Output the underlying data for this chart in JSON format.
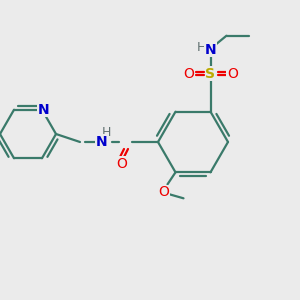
{
  "bg_color": "#ebebeb",
  "atom_colors": {
    "C": "#3a7a6a",
    "N": "#0000cc",
    "O": "#ee0000",
    "S": "#bbaa00",
    "H": "#607070"
  },
  "bond_color": "#3a7a6a",
  "figsize": [
    3.0,
    3.0
  ],
  "dpi": 100,
  "lw": 1.6
}
